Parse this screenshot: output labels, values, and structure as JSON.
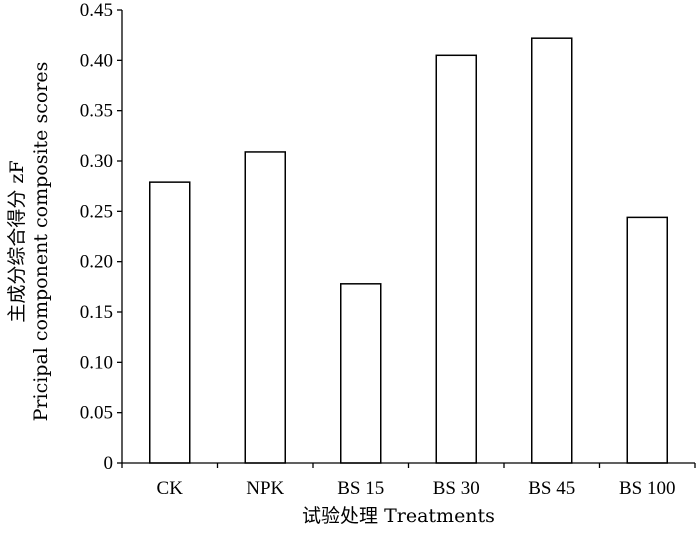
{
  "chart_data": {
    "type": "bar",
    "categories": [
      "CK",
      "NPK",
      "BS 15",
      "BS 30",
      "BS 45",
      "BS 100"
    ],
    "values": [
      0.279,
      0.309,
      0.178,
      0.405,
      0.422,
      0.244
    ],
    "title": "",
    "xlabel": "试验处理  Treatments",
    "ylabel_line1": "主成分综合得分  zF",
    "ylabel_line2": "Pricipal component  composite scores",
    "ylim": [
      0,
      0.45
    ],
    "yticks": [
      "0",
      "0.05",
      "0.10",
      "0.15",
      "0.20",
      "0.25",
      "0.30",
      "0.35",
      "0.40",
      "0.45"
    ],
    "ytick_values": [
      0,
      0.05,
      0.1,
      0.15,
      0.2,
      0.25,
      0.3,
      0.35,
      0.4,
      0.45
    ],
    "grid": false,
    "bar_fill": "#ffffff",
    "bar_stroke": "#000000"
  }
}
